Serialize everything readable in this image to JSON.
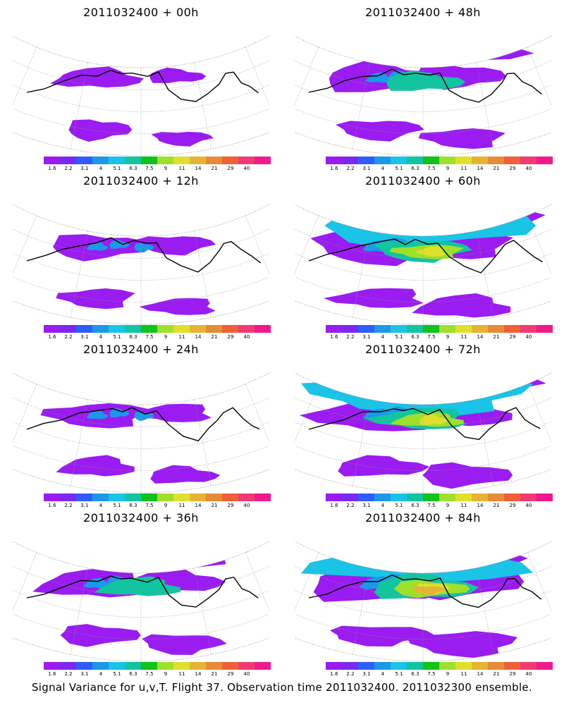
{
  "panels": [
    {
      "title": "2011032400 + 00h",
      "col": 0,
      "row": 0,
      "level": 0
    },
    {
      "title": "2011032400 + 48h",
      "col": 1,
      "row": 0,
      "level": 2
    },
    {
      "title": "2011032400 + 12h",
      "col": 0,
      "row": 1,
      "level": 1
    },
    {
      "title": "2011032400 + 60h",
      "col": 1,
      "row": 1,
      "level": 3
    },
    {
      "title": "2011032400 + 24h",
      "col": 0,
      "row": 2,
      "level": 1
    },
    {
      "title": "2011032400 + 72h",
      "col": 1,
      "row": 2,
      "level": 3
    },
    {
      "title": "2011032400 + 36h",
      "col": 0,
      "row": 3,
      "level": 2
    },
    {
      "title": "2011032400 + 84h",
      "col": 1,
      "row": 3,
      "level": 4
    }
  ],
  "colorbar": {
    "colors": [
      "#9a1cf0",
      "#7b28f0",
      "#2f5cff",
      "#1c98e8",
      "#19c4e6",
      "#12c4a0",
      "#10c21a",
      "#9ee02c",
      "#e0e02c",
      "#e6b434",
      "#e68b36",
      "#f06038",
      "#f23a72",
      "#f01a8a"
    ],
    "labels": [
      "1.6",
      "2.2",
      "3.1",
      "4",
      "5.1",
      "6.3",
      "7.5",
      "9",
      "11",
      "14",
      "21",
      "29",
      "40"
    ]
  },
  "footer": "Signal Variance for u,v,T. Flight 37. Observation time 2011032400. 2011032300 ensemble."
}
